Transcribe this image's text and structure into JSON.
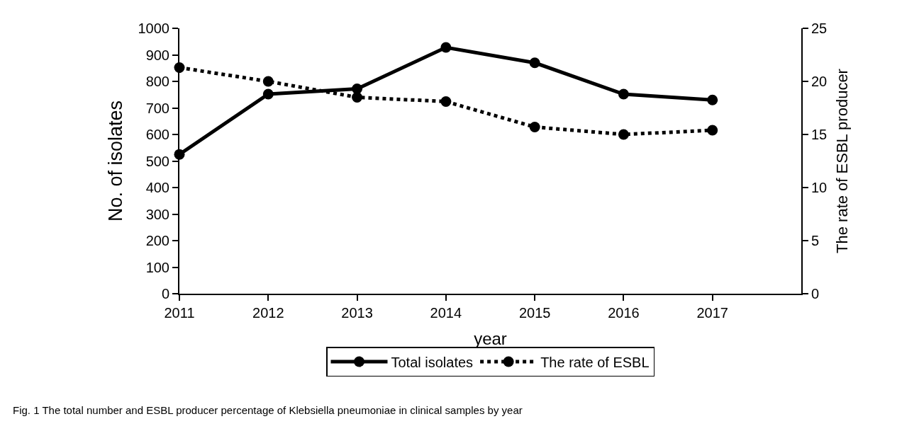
{
  "chart_data": {
    "type": "line",
    "xlabel": "year",
    "ylabel": "No. of isolates",
    "y2label": "The rate of ESBL producer",
    "x": [
      2011,
      2012,
      2013,
      2014,
      2015,
      2016,
      2017
    ],
    "series": [
      {
        "name": "Total isolates",
        "color": "#000000",
        "values": [
          525,
          752,
          772,
          928,
          870,
          752,
          730
        ],
        "line_style": "solid"
      },
      {
        "name": "The rate of ESBL",
        "color": "#000000",
        "values": [
          21.3,
          20.0,
          18.5,
          18.1,
          15.7,
          15.0,
          15.4
        ],
        "line_style": "dotted",
        "axis": "y2"
      }
    ],
    "xlim": [
      2011,
      2018
    ],
    "xticks": [
      2011,
      2012,
      2013,
      2014,
      2015,
      2016,
      2017
    ],
    "ylim": [
      0,
      1000
    ],
    "yticks": [
      0,
      100,
      200,
      300,
      400,
      500,
      600,
      700,
      800,
      900,
      1000
    ],
    "y2lim": [
      0,
      25
    ],
    "y2ticks": [
      0,
      5,
      10,
      15,
      20,
      25
    ],
    "marker": "circle",
    "grid": false,
    "legend": "bottom",
    "annotations": [
      "Fig. 1 The total number and ESBL producer percentage of Klebsiella pneumoniae in clinical samples by year"
    ]
  }
}
